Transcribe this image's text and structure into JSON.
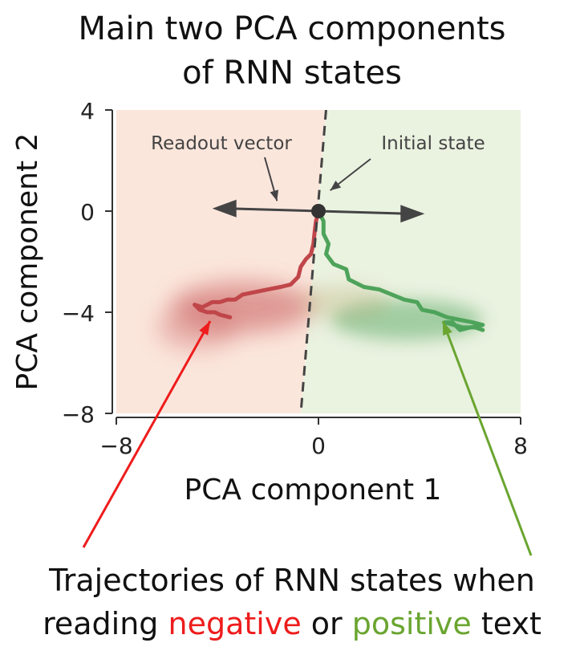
{
  "figure": {
    "title_line1": "Main two PCA components",
    "title_line2": "of RNN states",
    "caption_part1": "Trajectories of RNN states when",
    "caption_part2": "reading ",
    "caption_negative": "negative",
    "caption_middle": " or ",
    "caption_positive": "positive",
    "caption_end": " text",
    "negative_color": "#ee1c1c",
    "positive_color": "#6aa530"
  },
  "chart_data": {
    "type": "line",
    "title": "",
    "xlabel": "PCA component 1",
    "ylabel": "PCA component 2",
    "xlim": [
      -8,
      8
    ],
    "ylim": [
      -8,
      4
    ],
    "xticks": [
      -8,
      0,
      8
    ],
    "yticks": [
      4,
      0,
      -4,
      -8
    ],
    "xtick_labels": [
      "−8",
      "0",
      "8"
    ],
    "ytick_labels": [
      "4",
      "0",
      "−4",
      "−8"
    ],
    "grid": false,
    "background": {
      "negative_region": "#fbe6dc",
      "positive_region": "#eaf2e0"
    },
    "decision_boundary": {
      "points": [
        [
          0.3,
          4
        ],
        [
          -0.7,
          -8
        ]
      ],
      "style": "dashed",
      "color": "#444444"
    },
    "readout_vector": {
      "from": [
        -8,
        0.2
      ],
      "to": [
        8,
        -0.2
      ],
      "display_span": [
        -4.2,
        4.2
      ],
      "color": "#444444"
    },
    "initial_state": {
      "x": 0,
      "y": 0
    },
    "annotations": [
      {
        "text": "Readout vector",
        "x": -3.8,
        "y": 2.7,
        "arrow_to": [
          -1.8,
          0.15
        ]
      },
      {
        "text": "Initial state",
        "x": 4.6,
        "y": 2.7,
        "arrow_to": [
          0.4,
          0.5
        ]
      }
    ],
    "series": [
      {
        "name": "negative",
        "color": "#c0464a",
        "values": [
          [
            0,
            0
          ],
          [
            -0.1,
            -0.4
          ],
          [
            -0.15,
            -0.8
          ],
          [
            -0.2,
            -1.3
          ],
          [
            -0.3,
            -1.7
          ],
          [
            -0.5,
            -1.9
          ],
          [
            -0.7,
            -2.2
          ],
          [
            -0.8,
            -2.6
          ],
          [
            -1.1,
            -2.9
          ],
          [
            -1.5,
            -3.0
          ],
          [
            -2.0,
            -3.1
          ],
          [
            -2.5,
            -3.2
          ],
          [
            -3.0,
            -3.3
          ],
          [
            -3.3,
            -3.5
          ],
          [
            -3.6,
            -3.5
          ],
          [
            -3.9,
            -3.6
          ],
          [
            -4.2,
            -3.6
          ],
          [
            -4.6,
            -3.8
          ],
          [
            -4.9,
            -3.7
          ],
          [
            -4.7,
            -3.9
          ],
          [
            -4.4,
            -4.0
          ],
          [
            -4.1,
            -4.0
          ],
          [
            -3.9,
            -4.1
          ],
          [
            -3.5,
            -4.2
          ]
        ]
      },
      {
        "name": "positive",
        "color": "#4ea35a",
        "values": [
          [
            0,
            0
          ],
          [
            0.2,
            -0.4
          ],
          [
            0.2,
            -0.9
          ],
          [
            0.4,
            -1.3
          ],
          [
            0.3,
            -1.7
          ],
          [
            0.6,
            -2.1
          ],
          [
            1.1,
            -2.3
          ],
          [
            1.2,
            -2.7
          ],
          [
            1.8,
            -3.0
          ],
          [
            2.4,
            -3.1
          ],
          [
            2.9,
            -3.3
          ],
          [
            3.4,
            -3.5
          ],
          [
            3.9,
            -3.6
          ],
          [
            4.1,
            -3.9
          ],
          [
            4.6,
            -4.0
          ],
          [
            5.1,
            -4.2
          ],
          [
            5.6,
            -4.3
          ],
          [
            6.1,
            -4.4
          ],
          [
            6.5,
            -4.5
          ],
          [
            6.0,
            -4.6
          ],
          [
            5.6,
            -4.7
          ],
          [
            5.3,
            -4.4
          ],
          [
            5.0,
            -4.4
          ],
          [
            5.7,
            -4.6
          ],
          [
            6.2,
            -4.6
          ],
          [
            6.5,
            -4.7
          ]
        ]
      }
    ],
    "density_clouds": [
      {
        "color": "#c85a5a",
        "center": [
          -3.0,
          -3.8
        ],
        "spread": [
          2.8,
          1.0
        ]
      },
      {
        "color": "#5aa865",
        "center": [
          3.5,
          -4.3
        ],
        "spread": [
          3.0,
          0.8
        ]
      }
    ]
  }
}
